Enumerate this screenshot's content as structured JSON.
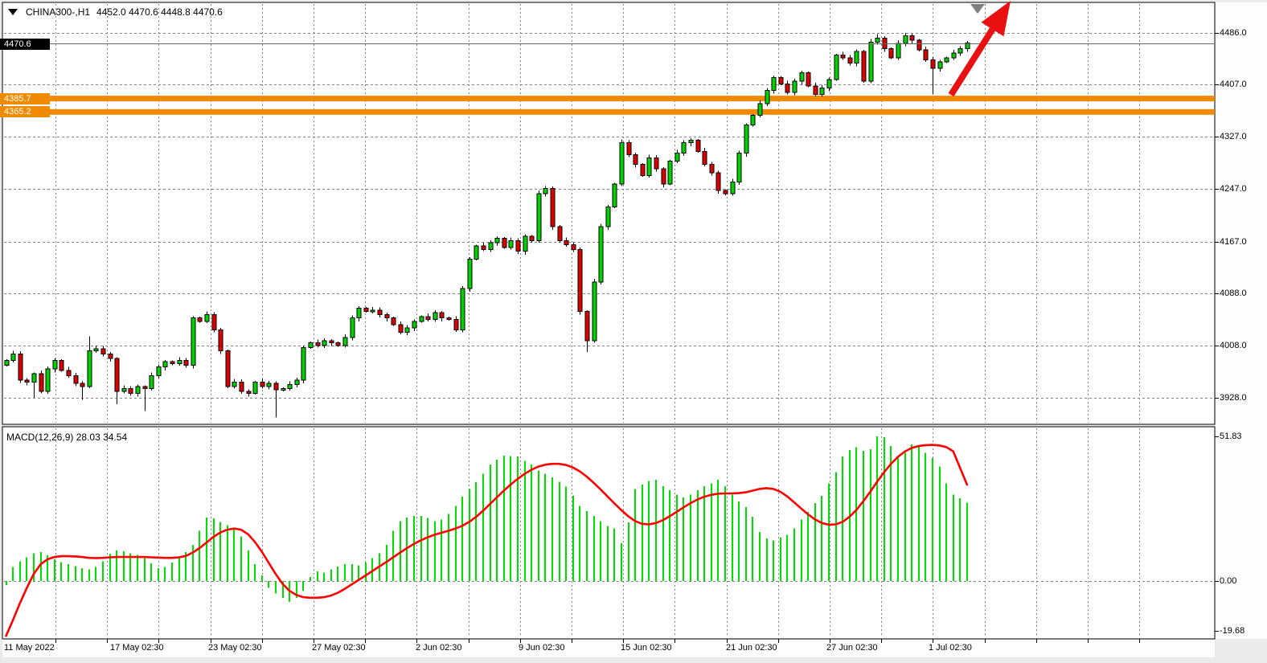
{
  "window": {
    "symbol_title": "CHINA300-,H1",
    "ohlc_display": "4452.0 4470.6 4448.8 4470.6"
  },
  "chart_data": [
    {
      "type": "candlestick",
      "title": "CHINA300-,H1",
      "timeframe": "H1",
      "ohlc_values": [
        "4452.0",
        "4470.6",
        "4448.8",
        "4470.6"
      ],
      "y_axis": {
        "labels": [
          "4486.0",
          "4407.0",
          "4327.0",
          "4247.0",
          "4167.0",
          "4088.0",
          "4008.0",
          "3928.0"
        ],
        "current_price_label": "4470.6",
        "current_price": 4470.6
      },
      "x_axis_labels": [
        "11 May 2022",
        "17 May 02:30",
        "23 May 02:30",
        "27 May 02:30",
        "2 Jun 02:30",
        "9 Jun 02:30",
        "15 Jun 02:30",
        "21 Jun 02:30",
        "27 Jun 02:30",
        "1 Jul 02:30"
      ],
      "h_lines": [
        {
          "price": 4385.7,
          "label": "4385.7",
          "color": "#f08a00"
        },
        {
          "price": 4365.2,
          "label": "4365.2",
          "color": "#f08a00"
        }
      ],
      "first_open": 3978,
      "closes": [
        3985,
        3995,
        3955,
        3952,
        3965,
        3938,
        3972,
        3985,
        3970,
        3962,
        3950,
        3945,
        4000,
        4003,
        3995,
        3988,
        3938,
        3942,
        3935,
        3945,
        3942,
        3962,
        3975,
        3983,
        3980,
        3985,
        3978,
        4050,
        4045,
        4055,
        4032,
        4000,
        3945,
        3952,
        3938,
        3935,
        3952,
        3945,
        3950,
        3940,
        3942,
        3948,
        3955,
        4005,
        4012,
        4008,
        4015,
        4012,
        4008,
        4020,
        4050,
        4065,
        4060,
        4062,
        4055,
        4050,
        4040,
        4028,
        4035,
        4045,
        4052,
        4048,
        4058,
        4050,
        4048,
        4032,
        4095,
        4140,
        4160,
        4155,
        4165,
        4172,
        4158,
        4168,
        4152,
        4175,
        4168,
        4240,
        4248,
        4190,
        4168,
        4162,
        4155,
        4060,
        4015,
        4105,
        4190,
        4220,
        4255,
        4318,
        4300,
        4285,
        4268,
        4295,
        4278,
        4255,
        4290,
        4302,
        4318,
        4322,
        4305,
        4285,
        4272,
        4245,
        4240,
        4258,
        4302,
        4345,
        4360,
        4378,
        4398,
        4418,
        4408,
        4395,
        4412,
        4425,
        4405,
        4392,
        4402,
        4415,
        4452,
        4448,
        4440,
        4458,
        4412,
        4472,
        4478,
        4462,
        4448,
        4470,
        4482,
        4475,
        4460,
        4445,
        4432,
        4442,
        4448,
        4455,
        4462,
        4470.6
      ],
      "special_lows": {
        "4": 3928,
        "11": 3925,
        "16": 3918,
        "20": 3908,
        "39": 3898,
        "84": 3998,
        "134": 4392
      },
      "special_highs": {
        "12": 4022,
        "126": 4484,
        "130": 4486
      },
      "colors": {
        "up": "#00d300",
        "down": "#de0000",
        "outline": "#000000",
        "grid": "#848484",
        "price_line": "#6a6a6a",
        "band": "#f08a00",
        "arrow": "#e81010",
        "end_marker": "#7f7f7f"
      },
      "annotations": {
        "arrow_direction": "up",
        "end_marker": "current-bar-triangle"
      }
    },
    {
      "type": "bar",
      "name": "MACD(12,26,9)",
      "values_display": "28.03 34.54",
      "macd_value": 28.03,
      "signal_value": 34.54,
      "y_axis_labels": [
        "51.83",
        "0.00",
        "-19.68"
      ],
      "colors": {
        "histogram": "#00e000",
        "signal": "#ff0000"
      },
      "histogram": [
        -1.5,
        5,
        7,
        8.5,
        10,
        10.3,
        9.2,
        7.8,
        6.8,
        6,
        5.3,
        4.6,
        4.2,
        5,
        7,
        9.8,
        11,
        10.6,
        9.9,
        9.3,
        8.2,
        6.4,
        4.6,
        5,
        6.6,
        8.2,
        10.3,
        13,
        18,
        22.8,
        22.4,
        21.2,
        20,
        19.2,
        16,
        11,
        6,
        2,
        -2.5,
        -4.5,
        -6,
        -7.5,
        -6,
        -3.5,
        1.5,
        3.4,
        3,
        4.2,
        5.2,
        6,
        6,
        5.6,
        6.6,
        8.2,
        10,
        13,
        18,
        21.5,
        22.8,
        23.3,
        23.3,
        22.6,
        21.5,
        22,
        24,
        27,
        30.2,
        33,
        35.4,
        38.5,
        41.7,
        43.5,
        45,
        44.8,
        44.6,
        43,
        41.7,
        39.6,
        38.4,
        37.2,
        35.5,
        33.8,
        30.5,
        27,
        25,
        23.3,
        21.4,
        19.8,
        18.9,
        13.5,
        21,
        33,
        34.5,
        35.8,
        36.3,
        34,
        32.5,
        31,
        30,
        31,
        32.5,
        34,
        35,
        36.3,
        34,
        31,
        28.5,
        26.5,
        23,
        17.5,
        15.3,
        14.5,
        15.5,
        16.5,
        18.8,
        22,
        24.8,
        28,
        30.5,
        35,
        39,
        44.6,
        47,
        48,
        46.6,
        47.2,
        51.83,
        51.5,
        48.4,
        44.6,
        46,
        49,
        48.7,
        46,
        44,
        41,
        35,
        31,
        29.6,
        28.03
      ],
      "signal": [
        -19.68,
        -14,
        -8,
        -2.5,
        2.5,
        6,
        7.8,
        8.6,
        8.9,
        8.9,
        8.8,
        8.6,
        8.3,
        8.2,
        8.3,
        8.5,
        8.6,
        8.6,
        8.6,
        8.6,
        8.6,
        8.5,
        8.4,
        8.3,
        8.3,
        8.5,
        9,
        10.2,
        11.8,
        13.8,
        15.8,
        17.4,
        18.4,
        18.8,
        18.4,
        16.8,
        14,
        10.5,
        6.5,
        2.5,
        -1,
        -3.5,
        -5,
        -5.8,
        -6,
        -6,
        -5.8,
        -5.2,
        -4.2,
        -2.8,
        -1.2,
        0.4,
        2,
        3.6,
        5.2,
        6.8,
        8.5,
        10.2,
        11.8,
        13.3,
        14.6,
        15.7,
        16.6,
        17.3,
        18,
        18.8,
        19.8,
        21.2,
        23,
        25.2,
        27.6,
        30,
        32.4,
        34.6,
        36.6,
        38.4,
        39.9,
        41,
        41.7,
        42,
        42,
        41.6,
        40.7,
        39.3,
        37.4,
        35.2,
        32.8,
        30.3,
        27.8,
        25.4,
        23.2,
        21.5,
        20.5,
        20.3,
        20.8,
        21.8,
        23.2,
        24.8,
        26.4,
        27.9,
        29.2,
        30.2,
        30.9,
        31.3,
        31.4,
        31.4,
        31.5,
        31.8,
        32.4,
        33,
        33.3,
        33,
        32,
        30.3,
        28.2,
        26,
        23.9,
        22.1,
        20.8,
        20.2,
        20.3,
        21.2,
        23,
        25.5,
        28.6,
        32,
        35.6,
        39,
        42,
        44.5,
        46.4,
        47.7,
        48.4,
        48.7,
        48.8,
        48.6,
        48,
        46.5,
        40.5,
        34.54
      ]
    }
  ]
}
